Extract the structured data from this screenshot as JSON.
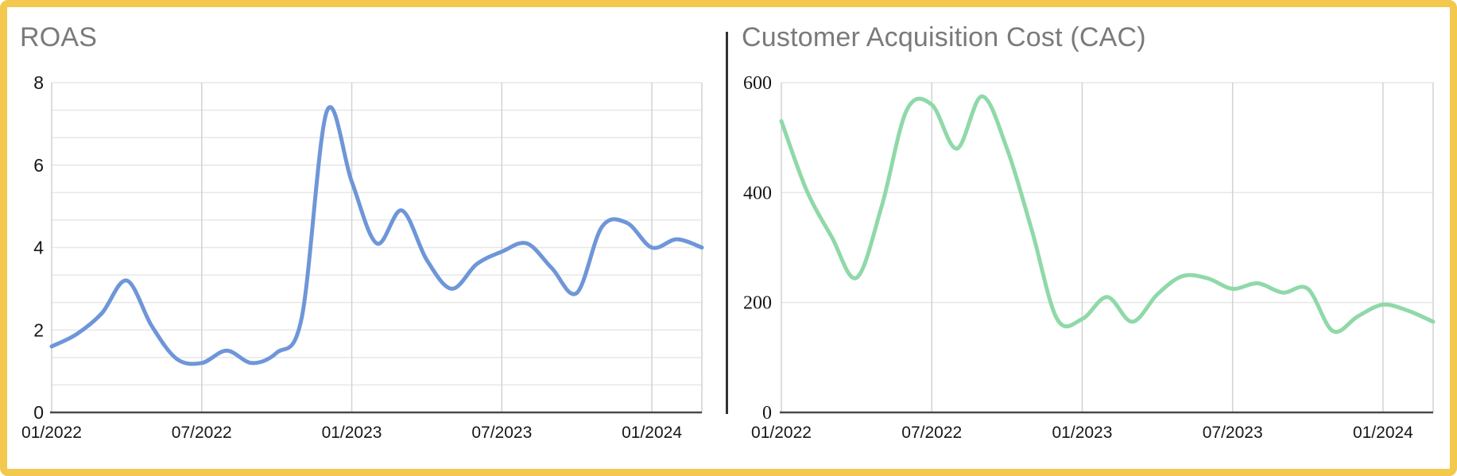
{
  "frame": {
    "border_color": "#F2C84D",
    "background": "#FFFFFF",
    "divider_color": "#333333"
  },
  "colors": {
    "grid_horizontal": "#e7e7e7",
    "grid_vertical": "#d2d2d2",
    "axis_baseline": "#4a4a4a",
    "tick_label": "#161616",
    "title_gray": "#7a7a7a",
    "roas_line": "#6E96D8",
    "cac_line": "#8FD9A8"
  },
  "chart_data": [
    {
      "type": "line",
      "title": "ROAS",
      "categories": [
        "01/2022",
        "02/2022",
        "03/2022",
        "04/2022",
        "05/2022",
        "06/2022",
        "07/2022",
        "08/2022",
        "09/2022",
        "10/2022",
        "11/2022",
        "12/2022",
        "01/2023",
        "02/2023",
        "03/2023",
        "04/2023",
        "05/2023",
        "06/2023",
        "07/2023",
        "08/2023",
        "09/2023",
        "10/2023",
        "11/2023",
        "12/2023",
        "01/2024",
        "02/2024",
        "03/2024"
      ],
      "values": [
        1.6,
        1.9,
        2.4,
        3.2,
        2.1,
        1.3,
        1.2,
        1.5,
        1.2,
        1.45,
        2.3,
        7.3,
        5.6,
        4.1,
        4.9,
        3.7,
        3.0,
        3.6,
        3.9,
        4.1,
        3.5,
        2.9,
        4.5,
        4.6,
        4.0,
        4.2,
        4.0
      ],
      "ylim": [
        0,
        8
      ],
      "y_ticks": [
        0,
        2,
        4,
        6,
        8
      ],
      "y_minor_divisions": 3,
      "x_tick_indices": [
        0,
        6,
        12,
        18,
        24
      ],
      "x_tick_labels": [
        "01/2022",
        "07/2022",
        "01/2023",
        "07/2023",
        "01/2024"
      ],
      "line_color": "#6E96D8",
      "grid": true,
      "legend": "none",
      "smooth": true,
      "y_tick_font": "sans",
      "xlabel": "",
      "ylabel": ""
    },
    {
      "type": "line",
      "title": "Customer Acquisition Cost (CAC)",
      "categories": [
        "01/2022",
        "02/2022",
        "03/2022",
        "04/2022",
        "05/2022",
        "06/2022",
        "07/2022",
        "08/2022",
        "09/2022",
        "10/2022",
        "11/2022",
        "12/2022",
        "01/2023",
        "02/2023",
        "03/2023",
        "04/2023",
        "05/2023",
        "06/2023",
        "07/2023",
        "08/2023",
        "09/2023",
        "10/2023",
        "11/2023",
        "12/2023",
        "01/2024",
        "02/2024",
        "03/2024"
      ],
      "values": [
        530,
        405,
        320,
        245,
        375,
        550,
        560,
        480,
        575,
        480,
        330,
        170,
        170,
        210,
        165,
        215,
        248,
        244,
        225,
        235,
        218,
        225,
        148,
        175,
        196,
        185,
        165
      ],
      "ylim": [
        0,
        600
      ],
      "y_ticks": [
        0,
        200,
        400,
        600
      ],
      "y_minor_divisions": 1,
      "x_tick_indices": [
        0,
        6,
        12,
        18,
        24
      ],
      "x_tick_labels": [
        "01/2022",
        "07/2022",
        "01/2023",
        "07/2023",
        "01/2024"
      ],
      "line_color": "#8FD9A8",
      "grid": true,
      "legend": "none",
      "smooth": true,
      "y_tick_font": "serif",
      "xlabel": "",
      "ylabel": ""
    }
  ]
}
